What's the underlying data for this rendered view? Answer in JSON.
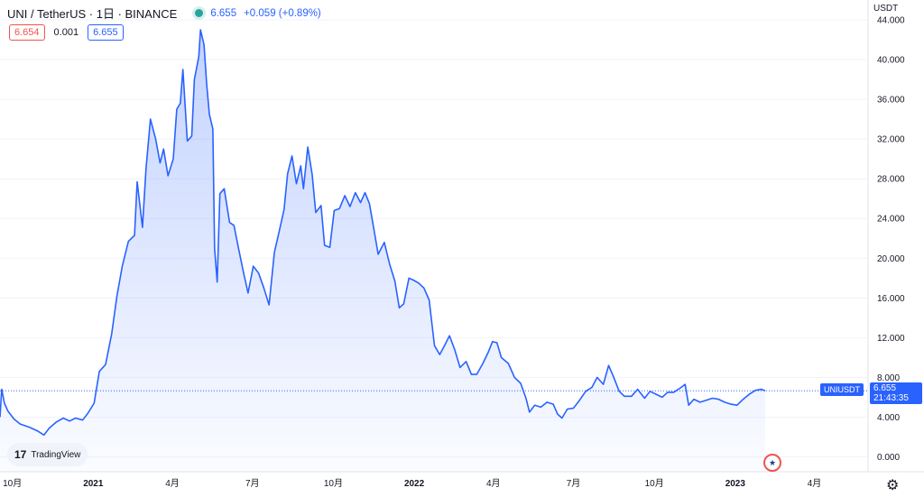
{
  "header": {
    "symbol": "UNI / TetherUS · 1日 · BINANCE",
    "last_price": "6.655",
    "change": "+0.059 (+0.89%)",
    "status_color": "#26a69a"
  },
  "quotes": {
    "bid": "6.654",
    "spread": "0.001",
    "ask": "6.655"
  },
  "axis": {
    "unit": "USDT",
    "y_ticks": [
      "44.000",
      "40.000",
      "36.000",
      "32.000",
      "28.000",
      "24.000",
      "20.000",
      "16.000",
      "12.000",
      "8.000",
      "4.000",
      "0.000"
    ],
    "x_ticks": [
      "10月",
      "2021",
      "4月",
      "7月",
      "10月",
      "2022",
      "4月",
      "7月",
      "10月",
      "2023",
      "4月"
    ],
    "x_bold": [
      false,
      true,
      false,
      false,
      false,
      true,
      false,
      false,
      false,
      true,
      false
    ]
  },
  "price_tag": {
    "symbol": "UNIUSDT",
    "price": "6.655",
    "countdown": "21:43:35"
  },
  "branding": {
    "logo_text": "TradingView",
    "logo_mark": "17"
  },
  "colors": {
    "line": "#2962ff",
    "fill": "#2962ff",
    "tag": "#2962ff"
  },
  "chart_data": {
    "type": "area",
    "title": "",
    "xlabel": "",
    "ylabel": "",
    "ylim": [
      -1.5,
      46
    ],
    "x_range": [
      "2020-09-17",
      "2023-06-01"
    ],
    "series": [
      {
        "points": [
          [
            "2020-09-17",
            4.0
          ],
          [
            "2020-09-19",
            6.8
          ],
          [
            "2020-09-22",
            5.4
          ],
          [
            "2020-09-26",
            4.6
          ],
          [
            "2020-10-03",
            3.8
          ],
          [
            "2020-10-10",
            3.3
          ],
          [
            "2020-10-20",
            3.0
          ],
          [
            "2020-10-30",
            2.6
          ],
          [
            "2020-11-06",
            2.2
          ],
          [
            "2020-11-12",
            2.9
          ],
          [
            "2020-11-20",
            3.5
          ],
          [
            "2020-11-28",
            3.9
          ],
          [
            "2020-12-05",
            3.6
          ],
          [
            "2020-12-12",
            3.9
          ],
          [
            "2020-12-20",
            3.7
          ],
          [
            "2020-12-26",
            4.4
          ],
          [
            "2021-01-02",
            5.4
          ],
          [
            "2021-01-08",
            8.6
          ],
          [
            "2021-01-15",
            9.3
          ],
          [
            "2021-01-22",
            12.4
          ],
          [
            "2021-01-28",
            16.2
          ],
          [
            "2021-02-03",
            19.2
          ],
          [
            "2021-02-10",
            21.7
          ],
          [
            "2021-02-17",
            22.3
          ],
          [
            "2021-02-20",
            27.7
          ],
          [
            "2021-02-26",
            23.1
          ],
          [
            "2021-03-02",
            29.0
          ],
          [
            "2021-03-07",
            34.0
          ],
          [
            "2021-03-13",
            32.0
          ],
          [
            "2021-03-18",
            29.6
          ],
          [
            "2021-03-22",
            31.0
          ],
          [
            "2021-03-27",
            28.3
          ],
          [
            "2021-04-02",
            30.0
          ],
          [
            "2021-04-06",
            35.0
          ],
          [
            "2021-04-10",
            35.6
          ],
          [
            "2021-04-13",
            39.0
          ],
          [
            "2021-04-18",
            31.8
          ],
          [
            "2021-04-23",
            32.3
          ],
          [
            "2021-04-26",
            38.0
          ],
          [
            "2021-05-01",
            40.3
          ],
          [
            "2021-05-03",
            43.0
          ],
          [
            "2021-05-07",
            41.5
          ],
          [
            "2021-05-10",
            37.6
          ],
          [
            "2021-05-13",
            34.5
          ],
          [
            "2021-05-17",
            33.0
          ],
          [
            "2021-05-19",
            21.0
          ],
          [
            "2021-05-22",
            17.6
          ],
          [
            "2021-05-25",
            26.5
          ],
          [
            "2021-05-30",
            27.0
          ],
          [
            "2021-06-05",
            23.6
          ],
          [
            "2021-06-10",
            23.3
          ],
          [
            "2021-06-15",
            21.1
          ],
          [
            "2021-06-21",
            18.5
          ],
          [
            "2021-06-26",
            16.5
          ],
          [
            "2021-07-02",
            19.2
          ],
          [
            "2021-07-08",
            18.5
          ],
          [
            "2021-07-14",
            17.0
          ],
          [
            "2021-07-20",
            15.3
          ],
          [
            "2021-07-26",
            20.6
          ],
          [
            "2021-08-01",
            22.9
          ],
          [
            "2021-08-06",
            24.9
          ],
          [
            "2021-08-10",
            28.5
          ],
          [
            "2021-08-15",
            30.3
          ],
          [
            "2021-08-20",
            27.5
          ],
          [
            "2021-08-25",
            29.3
          ],
          [
            "2021-08-28",
            27.0
          ],
          [
            "2021-09-02",
            31.2
          ],
          [
            "2021-09-07",
            28.4
          ],
          [
            "2021-09-11",
            24.6
          ],
          [
            "2021-09-17",
            25.3
          ],
          [
            "2021-09-21",
            21.3
          ],
          [
            "2021-09-27",
            21.1
          ],
          [
            "2021-10-02",
            24.8
          ],
          [
            "2021-10-08",
            25.0
          ],
          [
            "2021-10-14",
            26.3
          ],
          [
            "2021-10-20",
            25.2
          ],
          [
            "2021-10-26",
            26.6
          ],
          [
            "2021-11-01",
            25.6
          ],
          [
            "2021-11-06",
            26.6
          ],
          [
            "2021-11-11",
            25.5
          ],
          [
            "2021-11-16",
            23.0
          ],
          [
            "2021-11-21",
            20.4
          ],
          [
            "2021-11-28",
            21.6
          ],
          [
            "2021-12-04",
            19.4
          ],
          [
            "2021-12-10",
            17.7
          ],
          [
            "2021-12-15",
            15.0
          ],
          [
            "2021-12-20",
            15.4
          ],
          [
            "2021-12-26",
            18.0
          ],
          [
            "2021-12-31",
            17.8
          ],
          [
            "2022-01-06",
            17.5
          ],
          [
            "2022-01-12",
            17.0
          ],
          [
            "2022-01-18",
            15.8
          ],
          [
            "2022-01-24",
            11.2
          ],
          [
            "2022-01-30",
            10.3
          ],
          [
            "2022-02-05",
            11.3
          ],
          [
            "2022-02-10",
            12.2
          ],
          [
            "2022-02-16",
            10.8
          ],
          [
            "2022-02-22",
            9.0
          ],
          [
            "2022-03-01",
            9.6
          ],
          [
            "2022-03-07",
            8.3
          ],
          [
            "2022-03-13",
            8.3
          ],
          [
            "2022-03-20",
            9.4
          ],
          [
            "2022-03-26",
            10.5
          ],
          [
            "2022-03-31",
            11.6
          ],
          [
            "2022-04-05",
            11.5
          ],
          [
            "2022-04-10",
            10.0
          ],
          [
            "2022-04-18",
            9.4
          ],
          [
            "2022-04-25",
            8.0
          ],
          [
            "2022-05-02",
            7.4
          ],
          [
            "2022-05-08",
            5.9
          ],
          [
            "2022-05-12",
            4.5
          ],
          [
            "2022-05-18",
            5.2
          ],
          [
            "2022-05-25",
            5.0
          ],
          [
            "2022-06-01",
            5.5
          ],
          [
            "2022-06-08",
            5.3
          ],
          [
            "2022-06-13",
            4.3
          ],
          [
            "2022-06-18",
            3.9
          ],
          [
            "2022-06-24",
            4.8
          ],
          [
            "2022-07-01",
            4.9
          ],
          [
            "2022-07-08",
            5.7
          ],
          [
            "2022-07-15",
            6.6
          ],
          [
            "2022-07-22",
            7.0
          ],
          [
            "2022-07-28",
            8.0
          ],
          [
            "2022-08-04",
            7.3
          ],
          [
            "2022-08-10",
            9.2
          ],
          [
            "2022-08-15",
            8.2
          ],
          [
            "2022-08-22",
            6.6
          ],
          [
            "2022-08-28",
            6.1
          ],
          [
            "2022-09-05",
            6.1
          ],
          [
            "2022-09-12",
            6.8
          ],
          [
            "2022-09-20",
            5.9
          ],
          [
            "2022-09-26",
            6.6
          ],
          [
            "2022-10-03",
            6.3
          ],
          [
            "2022-10-10",
            6.0
          ],
          [
            "2022-10-16",
            6.5
          ],
          [
            "2022-10-23",
            6.5
          ],
          [
            "2022-10-30",
            6.9
          ],
          [
            "2022-11-05",
            7.3
          ],
          [
            "2022-11-09",
            5.2
          ],
          [
            "2022-11-15",
            5.8
          ],
          [
            "2022-11-22",
            5.5
          ],
          [
            "2022-11-29",
            5.7
          ],
          [
            "2022-12-06",
            5.9
          ],
          [
            "2022-12-13",
            5.8
          ],
          [
            "2022-12-20",
            5.5
          ],
          [
            "2022-12-27",
            5.3
          ],
          [
            "2023-01-03",
            5.2
          ],
          [
            "2023-01-10",
            5.8
          ],
          [
            "2023-01-17",
            6.3
          ],
          [
            "2023-01-24",
            6.7
          ],
          [
            "2023-01-31",
            6.8
          ],
          [
            "2023-02-04",
            6.65
          ]
        ]
      }
    ],
    "last_value": 6.655
  }
}
